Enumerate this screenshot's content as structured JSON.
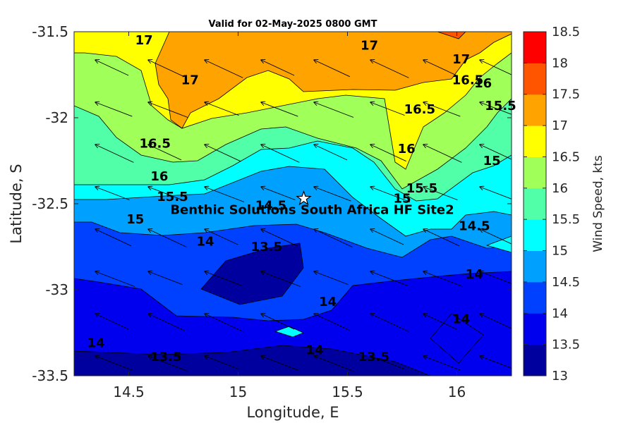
{
  "chart_data": {
    "type": "contour",
    "title": "Valid for 02-May-2025 0800 GMT",
    "xlabel": "Longitude, E",
    "ylabel": "Latitude, S",
    "xlim": [
      14.25,
      16.25
    ],
    "ylim": [
      -33.5,
      -31.5
    ],
    "xticks": [
      "14.5",
      "15",
      "15.5",
      "16"
    ],
    "yticks": [
      "-31.5",
      "-32",
      "-32.5",
      "-33",
      "-33.5"
    ],
    "colorbar": {
      "label": "Wind Speed, kts",
      "levels": [
        13,
        13.5,
        14,
        14.5,
        15,
        15.5,
        16,
        16.5,
        17,
        17.5,
        18,
        18.5
      ],
      "tick_labels": [
        "13",
        "13.5",
        "14",
        "14.5",
        "15",
        "15.5",
        "16",
        "16.5",
        "17",
        "17.5",
        "18",
        "18.5"
      ],
      "colors": [
        "#00009f",
        "#0000ef",
        "#0040ff",
        "#00a0ff",
        "#00ffff",
        "#50ffa8",
        "#a0ff58",
        "#ffff00",
        "#ffa300",
        "#ff5400",
        "#ff0000"
      ]
    },
    "contour_labels": [
      {
        "text": "17",
        "x": 14.57,
        "y": -31.55
      },
      {
        "text": "17",
        "x": 14.78,
        "y": -31.78
      },
      {
        "text": "17",
        "x": 15.6,
        "y": -31.58
      },
      {
        "text": "17",
        "x": 16.02,
        "y": -31.66
      },
      {
        "text": "16.5",
        "x": 16.05,
        "y": -31.78
      },
      {
        "text": "16",
        "x": 16.12,
        "y": -31.8
      },
      {
        "text": "15.5",
        "x": 16.2,
        "y": -31.93
      },
      {
        "text": "16.5",
        "x": 14.62,
        "y": -32.15
      },
      {
        "text": "16.5",
        "x": 15.83,
        "y": -31.95
      },
      {
        "text": "16",
        "x": 15.77,
        "y": -32.18
      },
      {
        "text": "15",
        "x": 16.16,
        "y": -32.25
      },
      {
        "text": "16",
        "x": 14.64,
        "y": -32.34
      },
      {
        "text": "15.5",
        "x": 14.7,
        "y": -32.46
      },
      {
        "text": "15.5",
        "x": 15.84,
        "y": -32.41
      },
      {
        "text": "15",
        "x": 14.53,
        "y": -32.59
      },
      {
        "text": "14.5",
        "x": 15.15,
        "y": -32.51
      },
      {
        "text": "15",
        "x": 15.75,
        "y": -32.47
      },
      {
        "text": "14.5",
        "x": 16.08,
        "y": -32.63
      },
      {
        "text": "14",
        "x": 14.85,
        "y": -32.72
      },
      {
        "text": "13.5",
        "x": 15.13,
        "y": -32.75
      },
      {
        "text": "14",
        "x": 16.08,
        "y": -32.91
      },
      {
        "text": "14",
        "x": 15.41,
        "y": -33.07
      },
      {
        "text": "14",
        "x": 16.02,
        "y": -33.17
      },
      {
        "text": "14",
        "x": 14.35,
        "y": -33.31
      },
      {
        "text": "13.5",
        "x": 14.67,
        "y": -33.39
      },
      {
        "text": "14",
        "x": 15.35,
        "y": -33.35
      },
      {
        "text": "13.5",
        "x": 15.62,
        "y": -33.39
      }
    ],
    "site": {
      "name": "Benthic Solutions South Africa HF Site2",
      "lon": 15.3,
      "lat": -32.47
    }
  }
}
